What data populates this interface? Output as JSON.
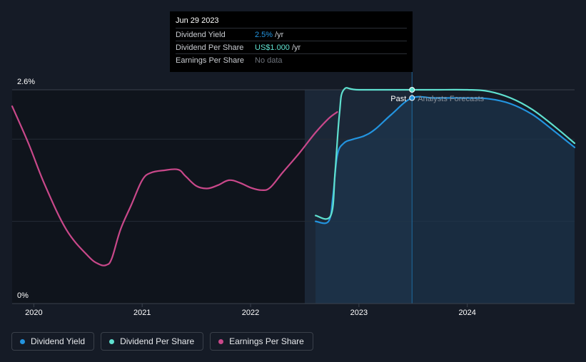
{
  "tooltip": {
    "date": "Jun 29 2023",
    "rows": [
      {
        "label": "Dividend Yield",
        "value": "2.5%",
        "unit": "/yr"
      },
      {
        "label": "Dividend Per Share",
        "value": "US$1.000",
        "unit": "/yr"
      },
      {
        "label": "Earnings Per Share",
        "value": "No data"
      }
    ]
  },
  "chart_data": {
    "type": "line",
    "x_ticks": [
      "2020",
      "2021",
      "2022",
      "2023",
      "2024"
    ],
    "y_ticks": [
      "0%",
      "2.6%"
    ],
    "ylim": [
      0,
      2.6
    ],
    "xlim": [
      2019.8,
      2024.99
    ],
    "past_label": "Past",
    "forecast_label": "Analysts Forecasts",
    "forecast_start": 2023.49,
    "series": [
      {
        "name": "Dividend Yield",
        "color": "#2394df",
        "area": true,
        "points": [
          [
            2022.6,
            1.0
          ],
          [
            2022.72,
            1.0
          ],
          [
            2022.76,
            1.3
          ],
          [
            2022.8,
            1.8
          ],
          [
            2022.86,
            1.95
          ],
          [
            2022.95,
            2.0
          ],
          [
            2023.05,
            2.04
          ],
          [
            2023.15,
            2.12
          ],
          [
            2023.3,
            2.3
          ],
          [
            2023.49,
            2.5
          ],
          [
            2023.7,
            2.5
          ],
          [
            2024.0,
            2.5
          ],
          [
            2024.2,
            2.49
          ],
          [
            2024.4,
            2.43
          ],
          [
            2024.6,
            2.3
          ],
          [
            2024.8,
            2.1
          ],
          [
            2024.99,
            1.9
          ]
        ]
      },
      {
        "name": "Dividend Per Share",
        "color": "#5fe0cf",
        "points": [
          [
            2022.6,
            1.07
          ],
          [
            2022.74,
            1.07
          ],
          [
            2022.78,
            1.6
          ],
          [
            2022.82,
            2.3
          ],
          [
            2022.86,
            2.6
          ],
          [
            2023.0,
            2.6
          ],
          [
            2023.49,
            2.6
          ],
          [
            2023.7,
            2.6
          ],
          [
            2024.0,
            2.6
          ],
          [
            2024.2,
            2.58
          ],
          [
            2024.4,
            2.5
          ],
          [
            2024.6,
            2.36
          ],
          [
            2024.8,
            2.16
          ],
          [
            2024.99,
            1.95
          ]
        ]
      },
      {
        "name": "Earnings Per Share",
        "color": "#c9488a",
        "points": [
          [
            2019.8,
            2.4
          ],
          [
            2019.95,
            1.95
          ],
          [
            2020.1,
            1.45
          ],
          [
            2020.3,
            0.9
          ],
          [
            2020.5,
            0.58
          ],
          [
            2020.6,
            0.48
          ],
          [
            2020.67,
            0.47
          ],
          [
            2020.72,
            0.55
          ],
          [
            2020.8,
            0.9
          ],
          [
            2020.9,
            1.2
          ],
          [
            2021.0,
            1.5
          ],
          [
            2021.08,
            1.59
          ],
          [
            2021.2,
            1.62
          ],
          [
            2021.33,
            1.63
          ],
          [
            2021.4,
            1.55
          ],
          [
            2021.5,
            1.43
          ],
          [
            2021.6,
            1.4
          ],
          [
            2021.7,
            1.44
          ],
          [
            2021.8,
            1.5
          ],
          [
            2021.9,
            1.47
          ],
          [
            2022.0,
            1.41
          ],
          [
            2022.1,
            1.38
          ],
          [
            2022.18,
            1.41
          ],
          [
            2022.3,
            1.6
          ],
          [
            2022.45,
            1.83
          ],
          [
            2022.6,
            2.08
          ],
          [
            2022.72,
            2.25
          ],
          [
            2022.8,
            2.33
          ]
        ]
      }
    ]
  },
  "legend": [
    {
      "label": "Dividend Yield",
      "color": "#2394df"
    },
    {
      "label": "Dividend Per Share",
      "color": "#5fe0cf"
    },
    {
      "label": "Earnings Per Share",
      "color": "#c9488a"
    }
  ]
}
